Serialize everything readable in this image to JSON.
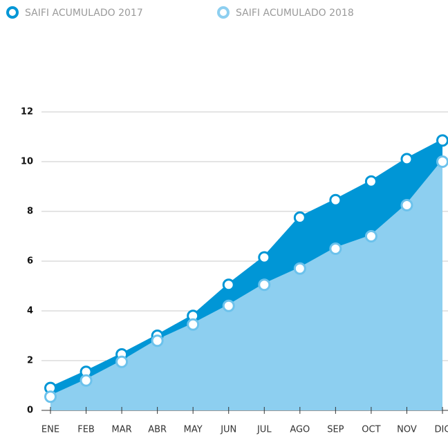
{
  "chart_data": {
    "type": "area",
    "categories": [
      "ENE",
      "FEB",
      "MAR",
      "ABR",
      "MAY",
      "JUN",
      "JUL",
      "AGO",
      "SEP",
      "OCT",
      "NOV",
      "DIC"
    ],
    "series": [
      {
        "name": "SAIFI ACUMULADO 2017",
        "color": "#0096d6",
        "values": [
          0.9,
          1.55,
          2.25,
          3.0,
          3.8,
          5.05,
          6.15,
          7.75,
          8.45,
          9.2,
          10.1,
          10.85
        ]
      },
      {
        "name": "SAIFI ACUMULADO 2018",
        "color": "#8dcff0",
        "values": [
          0.55,
          1.2,
          1.95,
          2.8,
          3.45,
          4.2,
          5.05,
          5.7,
          6.5,
          7.0,
          8.25,
          10.0
        ]
      }
    ],
    "ylim": [
      0,
      12
    ],
    "yticks": [
      0,
      2,
      4,
      6,
      8,
      10,
      12
    ],
    "grid": true,
    "legend": "top"
  }
}
